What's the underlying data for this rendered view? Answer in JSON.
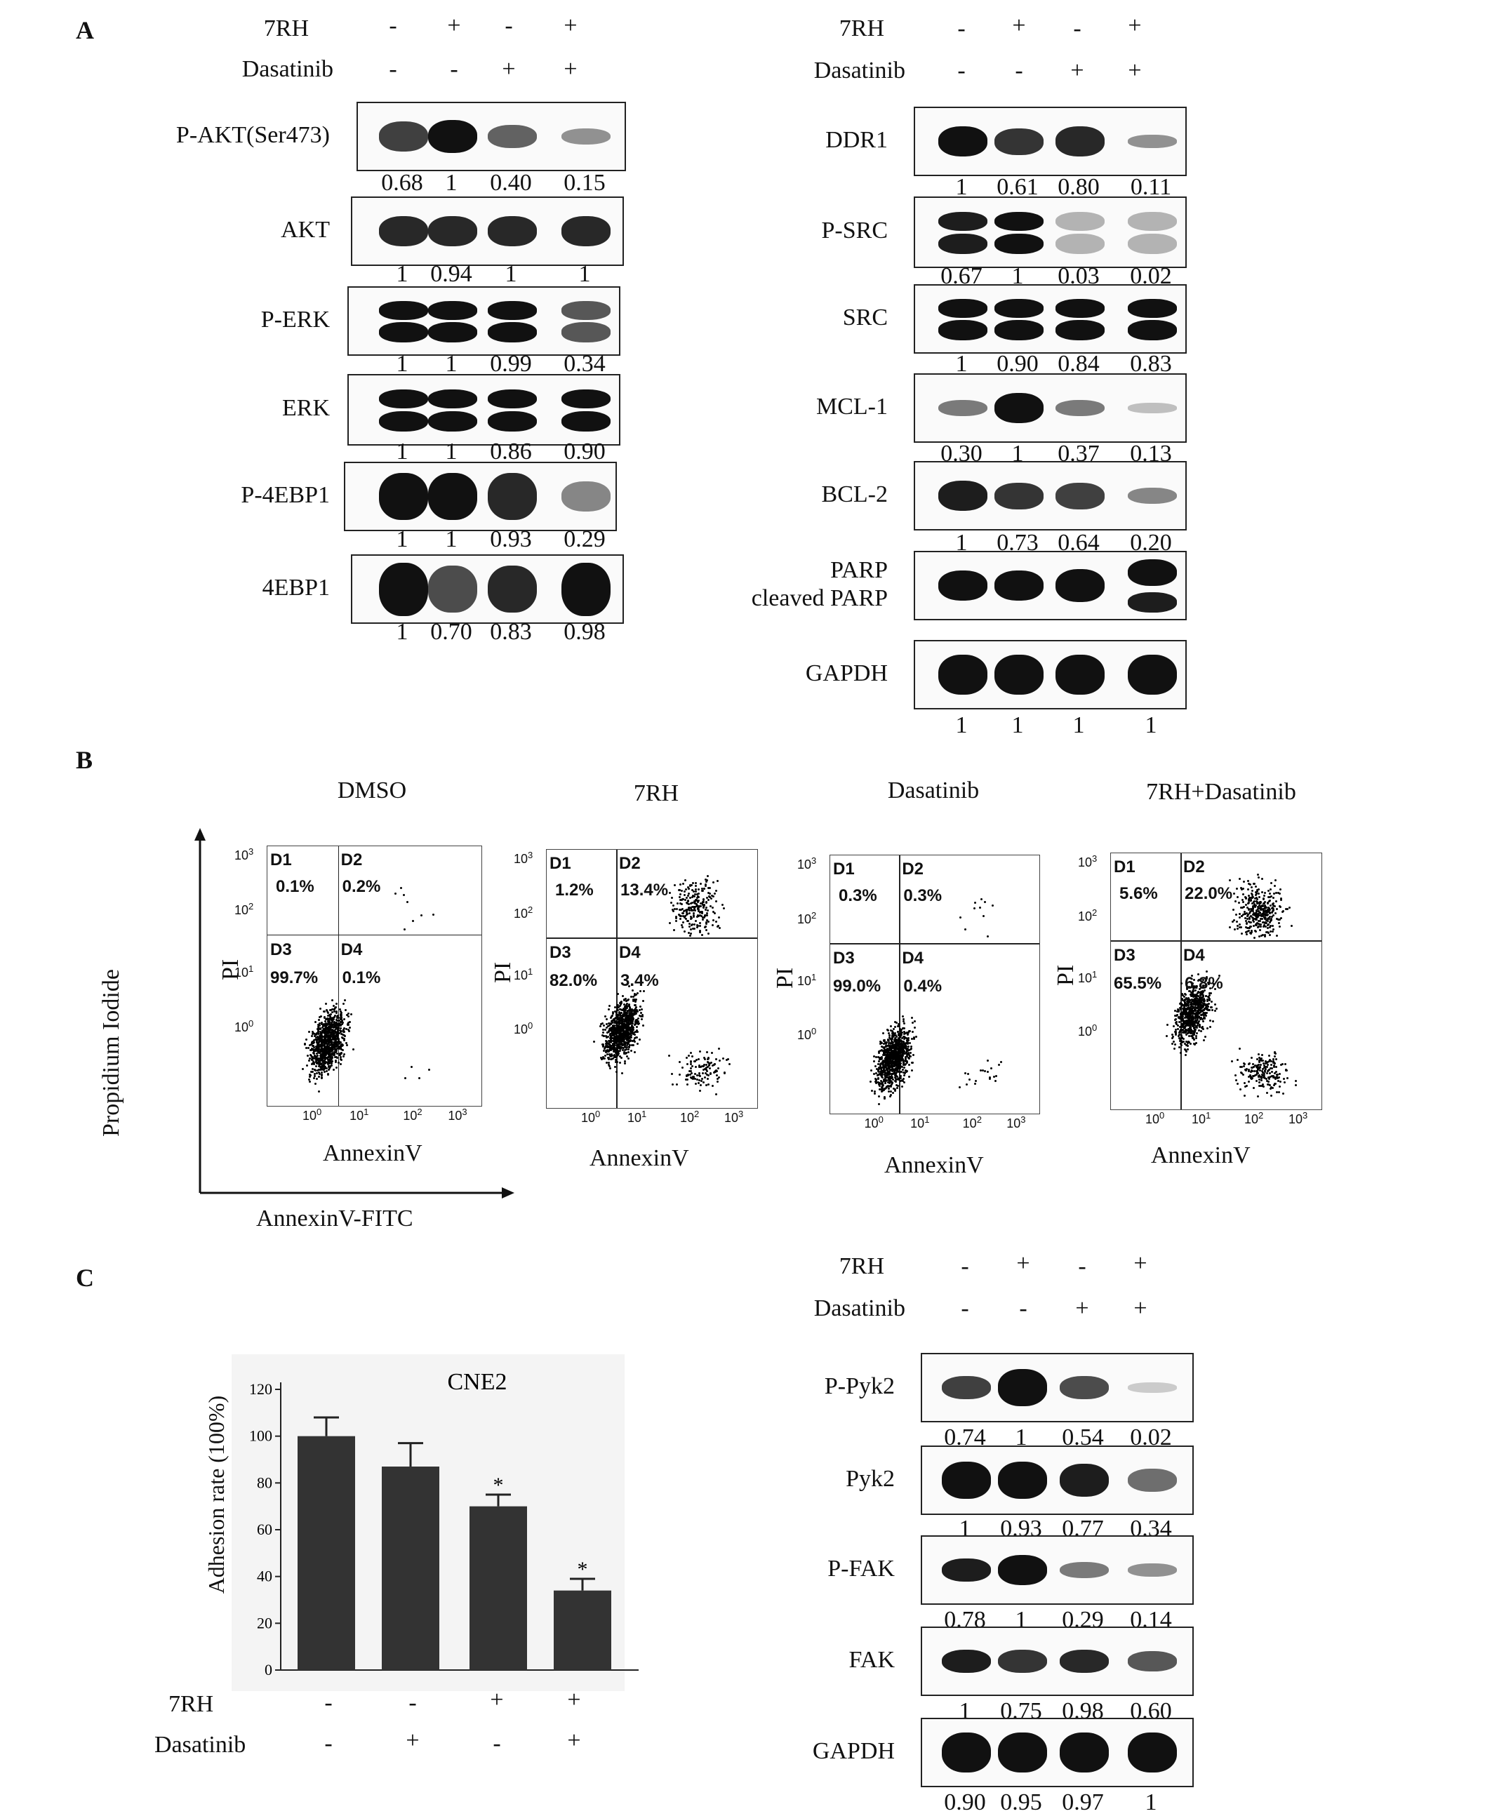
{
  "panel_a": {
    "letter": "A",
    "treatment_labels": [
      "7RH",
      "Dasatinib"
    ],
    "left_treatments": {
      "7RH": [
        "-",
        "+",
        "-",
        "+"
      ],
      "Dasatinib": [
        "-",
        "-",
        "+",
        "+"
      ]
    },
    "right_treatments": {
      "7RH": [
        "-",
        "+",
        "-",
        "+"
      ],
      "Dasatinib": [
        "-",
        "-",
        "+",
        "+"
      ]
    },
    "left_blots": [
      {
        "label": "P-AKT(Ser473)",
        "quant": [
          "0.68",
          "1",
          "0.40",
          "0.15"
        ]
      },
      {
        "label": "AKT",
        "quant": [
          "1",
          "0.94",
          "1",
          "1"
        ]
      },
      {
        "label": "P-ERK",
        "quant": [
          "1",
          "1",
          "0.99",
          "0.34"
        ]
      },
      {
        "label": "ERK",
        "quant": [
          "1",
          "1",
          "0.86",
          "0.90"
        ]
      },
      {
        "label": "P-4EBP1",
        "quant": [
          "1",
          "1",
          "0.93",
          "0.29"
        ]
      },
      {
        "label": "4EBP1",
        "quant": [
          "1",
          "0.70",
          "0.83",
          "0.98"
        ]
      }
    ],
    "right_blots": [
      {
        "label": "DDR1",
        "quant": [
          "1",
          "0.61",
          "0.80",
          "0.11"
        ]
      },
      {
        "label": "P-SRC",
        "quant": [
          "0.67",
          "1",
          "0.03",
          "0.02"
        ]
      },
      {
        "label": "SRC",
        "quant": [
          "1",
          "0.90",
          "0.84",
          "0.83"
        ]
      },
      {
        "label": "MCL-1",
        "quant": [
          "0.30",
          "1",
          "0.37",
          "0.13"
        ]
      },
      {
        "label": "BCL-2",
        "quant": [
          "1",
          "0.73",
          "0.64",
          "0.20"
        ]
      },
      {
        "label": "PARP\ncleaved PARP",
        "quant": []
      },
      {
        "label": "GAPDH",
        "quant": [
          "1",
          "1",
          "1",
          "1"
        ]
      }
    ]
  },
  "panel_b": {
    "letter": "B",
    "y_axis_title": "Propidium Iodide",
    "x_axis_title": "AnnexinV-FITC",
    "y_label": "PI",
    "x_label": "AnnexinV",
    "ticks": {
      "t0": "10",
      "t1": "10",
      "t2": "10",
      "t3": "10",
      "e0": "0",
      "e1": "1",
      "e2": "2",
      "e3": "3"
    },
    "plots": [
      {
        "title": "DMSO",
        "D1": "0.1%",
        "D2": "0.2%",
        "D3": "99.7%",
        "D4": "0.1%"
      },
      {
        "title": "7RH",
        "D1": "1.2%",
        "D2": "13.4%",
        "D3": "82.0%",
        "D4": "3.4%"
      },
      {
        "title": "Dasatinib",
        "D1": "0.3%",
        "D2": "0.3%",
        "D3": "99.0%",
        "D4": "0.4%"
      },
      {
        "title": "7RH+Dasatinib",
        "D1": "5.6%",
        "D2": "22.0%",
        "D3": "65.5%",
        "D4": "6.8%"
      }
    ],
    "quadrant_names": [
      "D1",
      "D2",
      "D3",
      "D4"
    ]
  },
  "panel_c": {
    "letter": "C",
    "bar_treatments": {
      "7RH": [
        "-",
        "-",
        "+",
        "+"
      ],
      "Dasatinib": [
        "-",
        "+",
        "-",
        "+"
      ]
    },
    "blot_treatments": {
      "7RH": [
        "-",
        "+",
        "-",
        "+"
      ],
      "Dasatinib": [
        "-",
        "-",
        "+",
        "+"
      ]
    },
    "treatment_labels": [
      "7RH",
      "Dasatinib"
    ],
    "blots": [
      {
        "label": "P-Pyk2",
        "quant": [
          "0.74",
          "1",
          "0.54",
          "0.02"
        ]
      },
      {
        "label": "Pyk2",
        "quant": [
          "1",
          "0.93",
          "0.77",
          "0.34"
        ]
      },
      {
        "label": "P-FAK",
        "quant": [
          "0.78",
          "1",
          "0.29",
          "0.14"
        ]
      },
      {
        "label": "FAK",
        "quant": [
          "1",
          "0.75",
          "0.98",
          "0.60"
        ]
      },
      {
        "label": "GAPDH",
        "quant": [
          "0.90",
          "0.95",
          "0.97",
          "1"
        ]
      }
    ]
  },
  "chart_data": {
    "type": "bar",
    "title": "CNE2",
    "ylabel": "Adhesion rate (100%)",
    "xlabel": "",
    "categories": [
      "7RH- Dasatinib-",
      "7RH- Dasatinib+",
      "7RH+ Dasatinib-",
      "7RH+ Dasatinib+"
    ],
    "values": [
      100,
      87,
      70,
      34
    ],
    "errors": [
      8,
      10,
      5,
      5
    ],
    "significance": [
      "",
      "",
      "*",
      "*"
    ],
    "ylim": [
      0,
      120
    ],
    "yticks": [
      "0",
      "20",
      "40",
      "60",
      "80",
      "100",
      "120"
    ],
    "bar_color": "#333333"
  }
}
